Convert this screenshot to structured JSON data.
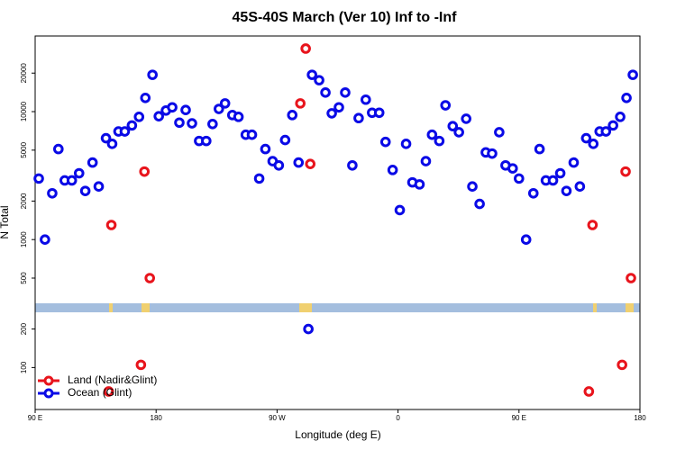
{
  "chart_data": {
    "type": "scatter",
    "title": "45S-40S March (Ver 10)   Inf to -Inf",
    "x_label": "Longitude (deg E)",
    "y_label": "N Total",
    "log_y": true,
    "legend": "lower left",
    "xlim": [
      90,
      540
    ],
    "ylim": [
      47,
      39000
    ],
    "xticks": [
      {
        "value": 90,
        "label": "90 E"
      },
      180,
      {
        "value": 270,
        "label": "90 W"
      },
      {
        "value": 360,
        "label": "0"
      },
      {
        "value": 450,
        "label": "90 E"
      },
      {
        "value": 540,
        "label": "180"
      }
    ],
    "yticks": [
      100,
      200,
      500,
      1000,
      2000,
      5000,
      10000,
      20000
    ],
    "series": [
      {
        "name": "Land (Nadir&Glint)",
        "color": "#e8141c",
        "x": [
          146.7,
          171.3,
          175.3,
          168.7,
          144.7,
          291.3,
          287.3,
          294.7,
          504.7,
          529.3,
          533.3,
          526.7,
          502
        ],
        "values": [
          1300,
          3400,
          500,
          105,
          65,
          31100,
          11600,
          3900,
          1300,
          3400,
          500,
          105,
          65
        ]
      },
      {
        "name": "Ocean (Glint)",
        "color": "#0a0ae6",
        "x": [
          92.7,
          97.3,
          102.7,
          107.3,
          112,
          117.3,
          122.7,
          127.3,
          132.7,
          137.3,
          142.7,
          147.3,
          152,
          156.7,
          162,
          167.3,
          172,
          177.3,
          182,
          187.3,
          192,
          197.3,
          202,
          206.7,
          212,
          217.3,
          222,
          226.7,
          231.3,
          236.7,
          241.3,
          246.7,
          251.3,
          256.7,
          261.3,
          266.7,
          271.3,
          276,
          281.3,
          286,
          293.3,
          296,
          301.3,
          306,
          310.7,
          316,
          320.7,
          326,
          330.7,
          336,
          340.7,
          346,
          350.7,
          356,
          361.3,
          366,
          370.7,
          376,
          380.7,
          385.3,
          390.7,
          395.3,
          400.7,
          405.3,
          410.7,
          415.3,
          420.7,
          425.3,
          430,
          435.3,
          440,
          445.3,
          450,
          455.3,
          460.7,
          465.3,
          470,
          475.3,
          480.7,
          485.3,
          490.7,
          495.3,
          500,
          505.3,
          510,
          514.7,
          520,
          525.3,
          530,
          534.7
        ],
        "values": [
          3000,
          1000,
          2300,
          5100,
          2900,
          2900,
          3300,
          2400,
          4000,
          2600,
          6200,
          5600,
          7000,
          7000,
          7800,
          9100,
          12800,
          19400,
          9200,
          10200,
          10800,
          8200,
          10300,
          8100,
          5900,
          5900,
          8000,
          10500,
          11600,
          9400,
          9100,
          6600,
          6600,
          3000,
          5100,
          4100,
          3800,
          6000,
          9400,
          4000,
          200,
          19400,
          17600,
          14100,
          9700,
          10800,
          14100,
          3800,
          8900,
          12400,
          9800,
          9800,
          5800,
          3500,
          1700,
          5600,
          2800,
          2700,
          4100,
          6600,
          5900,
          11200,
          7700,
          6900,
          8800,
          2600,
          1900,
          4800,
          4700,
          6900,
          3800,
          3600,
          3000,
          1000,
          2300,
          5100,
          2900,
          2900,
          3300,
          2400,
          4000,
          2600,
          6200,
          5600,
          7000,
          7000,
          7800,
          9100,
          12800,
          19400
        ]
      }
    ]
  }
}
